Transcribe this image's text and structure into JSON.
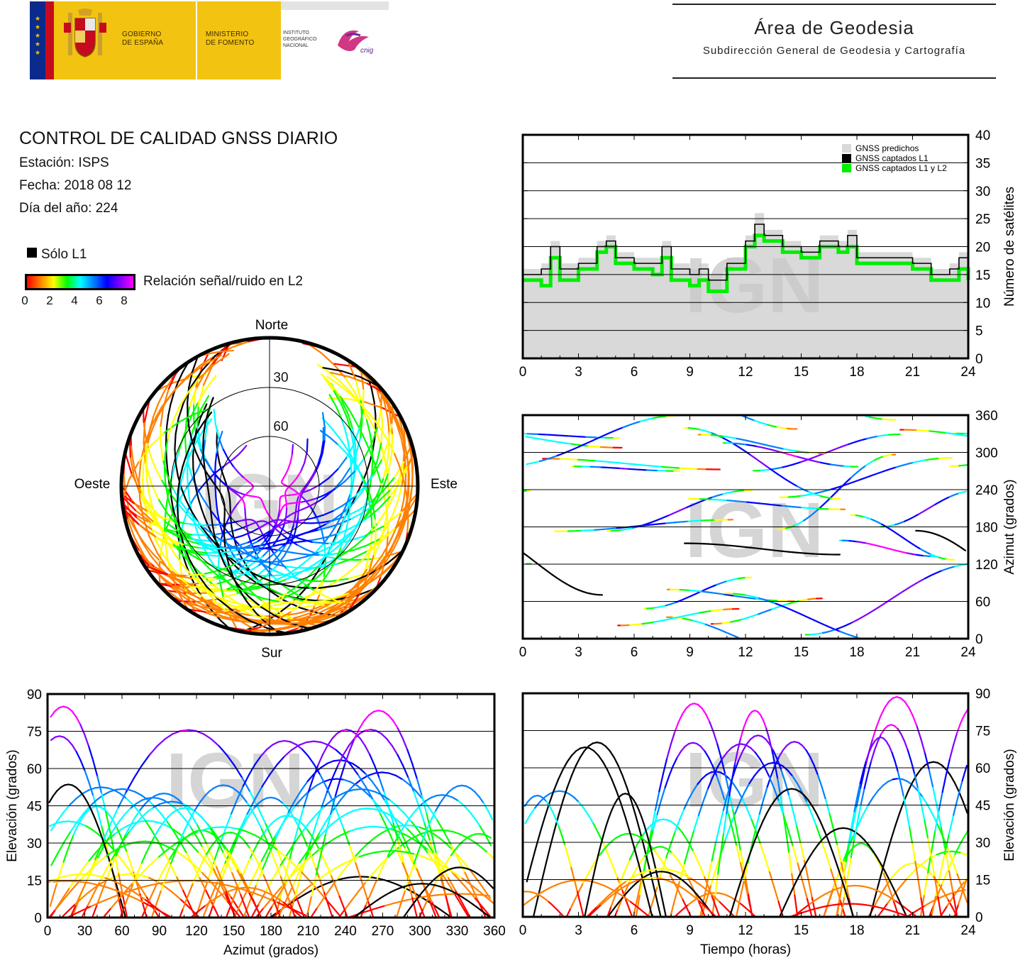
{
  "header": {
    "gov_line1": "GOBIERNO",
    "gov_line2": "DE ESPAÑA",
    "ministry_line1": "MINISTERIO",
    "ministry_line2": "DE FOMENTO",
    "ign_line1": "INSTITUTO",
    "ign_line2": "GEOGRÁFICO",
    "ign_line3": "NACIONAL",
    "cnig": "cnig",
    "area_title": "Área de Geodesia",
    "area_subtitle": "Subdirección General de Geodesia y Cartografía"
  },
  "report": {
    "title": "CONTROL DE CALIDAD GNSS DIARIO",
    "station": "Estación: ISPS",
    "date": "Fecha: 2018 08 12",
    "doy": "Día del año: 224"
  },
  "legend": {
    "l1_only": "Sólo L1",
    "snr_label": "Relación señal/ruido en L2",
    "snr_ticks": [
      "0",
      "2",
      "4",
      "6",
      "8"
    ]
  },
  "watermark": "IGN",
  "colors": {
    "predicted": "#d9d9d9",
    "captured_l1": "#000000",
    "captured_l1_l2": "#00ee00",
    "snr_scale": [
      "#ff0000",
      "#ff8000",
      "#ffff00",
      "#00ff00",
      "#00ffff",
      "#0080ff",
      "#0000ff",
      "#8000ff",
      "#ff00ff"
    ]
  },
  "chart_data": [
    {
      "id": "skyplot",
      "type": "scatter",
      "projection": "polar",
      "directions": {
        "north": "Norte",
        "south": "Sur",
        "east": "Este",
        "west": "Oeste"
      },
      "elevation_rings": [
        "30",
        "60"
      ],
      "mask_note": "northern gap (no satellites near north)",
      "tracks_description": "satellite tracks colored by L2 SNR"
    },
    {
      "id": "satellites",
      "type": "area",
      "ylabel": "Número de satélites",
      "xticks": [
        "0",
        "3",
        "6",
        "9",
        "12",
        "15",
        "18",
        "21",
        "24"
      ],
      "yticks": [
        "0",
        "5",
        "10",
        "15",
        "20",
        "25",
        "30",
        "35",
        "40"
      ],
      "xlim": [
        0,
        24
      ],
      "ylim": [
        0,
        40
      ],
      "legend_position": "top-right",
      "series": [
        {
          "name": "GNSS predichos",
          "x": [
            0,
            1,
            1.5,
            2,
            3,
            4,
            4.5,
            5,
            6,
            7,
            7.5,
            8,
            9,
            9.5,
            10,
            11,
            12,
            12.5,
            13,
            14,
            15,
            16,
            17,
            17.5,
            18,
            19,
            20,
            21,
            22,
            23,
            23.5,
            24
          ],
          "values": [
            16,
            17,
            21,
            17,
            18,
            21,
            22,
            19,
            18,
            18,
            21,
            17,
            16,
            17,
            15,
            18,
            22,
            26,
            23,
            21,
            20,
            22,
            21,
            23,
            19,
            19,
            19,
            18,
            16,
            17,
            19,
            16
          ]
        },
        {
          "name": "GNSS captados L1",
          "x": [
            0,
            1,
            1.5,
            2,
            3,
            4,
            4.5,
            5,
            6,
            7,
            7.5,
            8,
            9,
            9.5,
            10,
            11,
            12,
            12.5,
            13,
            14,
            15,
            16,
            17,
            17.5,
            18,
            19,
            20,
            21,
            22,
            23,
            23.5,
            24
          ],
          "values": [
            15,
            16,
            20,
            16,
            17,
            20,
            21,
            18,
            17,
            17,
            20,
            16,
            15,
            16,
            14,
            17,
            21,
            24,
            22,
            20,
            19,
            21,
            20,
            22,
            18,
            18,
            18,
            17,
            15,
            16,
            18,
            15
          ]
        },
        {
          "name": "GNSS captados L1 y L2",
          "x": [
            0,
            1,
            1.5,
            2,
            3,
            4,
            4.5,
            5,
            6,
            7,
            7.5,
            8,
            9,
            9.5,
            10,
            11,
            12,
            12.5,
            13,
            14,
            15,
            16,
            17,
            17.5,
            18,
            19,
            20,
            21,
            22,
            23,
            23.5,
            24
          ],
          "values": [
            14,
            13,
            18,
            14,
            16,
            19,
            20,
            17,
            16,
            15,
            18,
            14,
            13,
            14,
            12,
            16,
            20,
            22,
            21,
            19,
            18,
            20,
            19,
            20,
            17,
            17,
            17,
            16,
            14,
            14,
            16,
            14
          ]
        }
      ]
    },
    {
      "id": "azimuth_time",
      "type": "scatter",
      "ylabel": "Azimut (grados)",
      "xticks": [
        "0",
        "3",
        "6",
        "9",
        "12",
        "15",
        "18",
        "21",
        "24"
      ],
      "yticks": [
        "0",
        "60",
        "120",
        "180",
        "240",
        "300",
        "360"
      ],
      "xlim": [
        0,
        24
      ],
      "ylim": [
        0,
        360
      ]
    },
    {
      "id": "elevation_azimuth",
      "type": "scatter",
      "xlabel": "Azimut (grados)",
      "ylabel": "Elevación (grados)",
      "xticks": [
        "0",
        "30",
        "60",
        "90",
        "120",
        "150",
        "180",
        "210",
        "240",
        "270",
        "300",
        "330",
        "360"
      ],
      "yticks": [
        "0",
        "15",
        "30",
        "45",
        "60",
        "75",
        "90"
      ],
      "xlim": [
        0,
        360
      ],
      "ylim": [
        0,
        90
      ]
    },
    {
      "id": "elevation_time",
      "type": "scatter",
      "xlabel": "Tiempo (horas)",
      "ylabel": "Elevación (grados)",
      "xticks": [
        "0",
        "3",
        "6",
        "9",
        "12",
        "15",
        "18",
        "21",
        "24"
      ],
      "yticks": [
        "0",
        "15",
        "30",
        "45",
        "60",
        "75",
        "90"
      ],
      "xlim": [
        0,
        24
      ],
      "ylim": [
        0,
        90
      ]
    }
  ]
}
